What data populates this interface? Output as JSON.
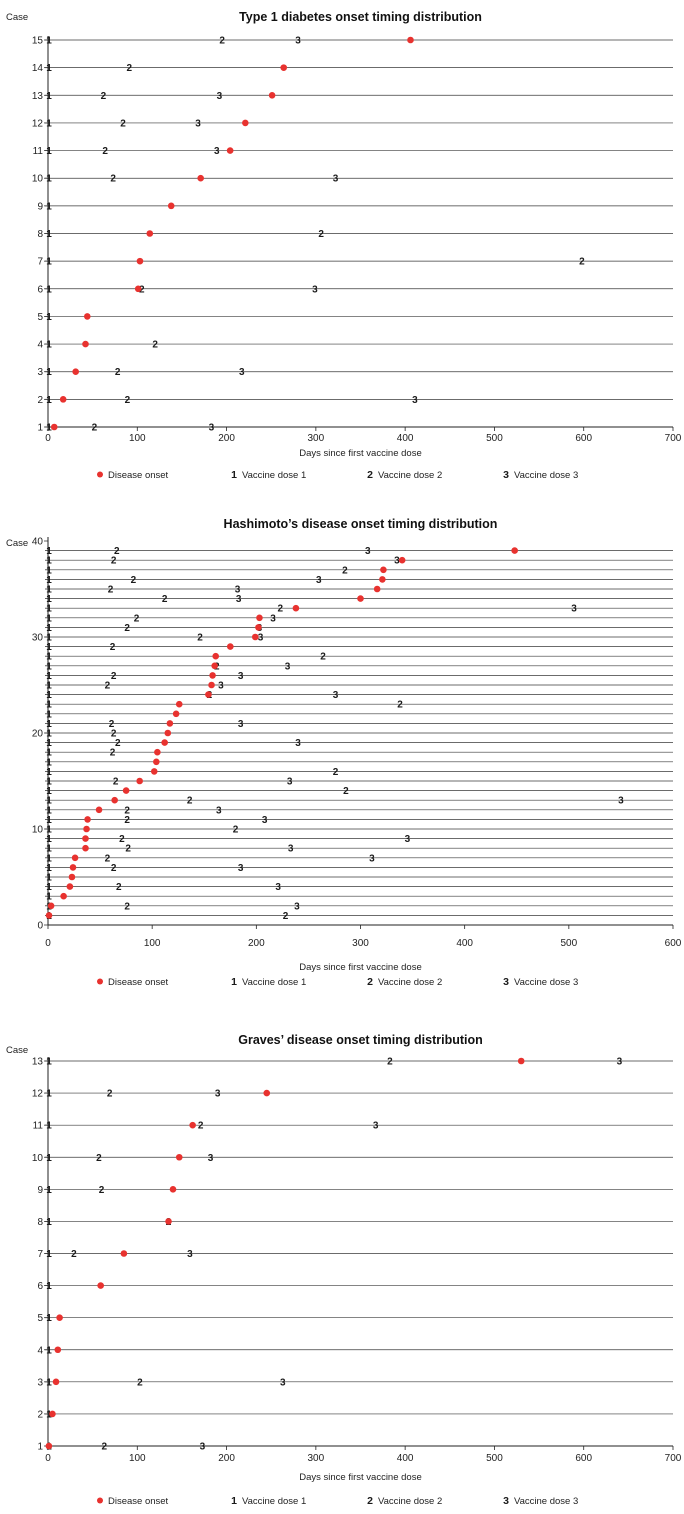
{
  "chart_data": [
    {
      "type": "scatter",
      "title": "Type 1 diabetes onset timing distribution",
      "ylabel": "Case",
      "xlabel": "Days since first vaccine dose",
      "xlim": [
        0,
        700
      ],
      "ylim": [
        1,
        15
      ],
      "xticks": [
        0,
        100,
        200,
        300,
        400,
        500,
        600,
        700
      ],
      "yticks": [
        1,
        2,
        3,
        4,
        5,
        6,
        7,
        8,
        9,
        10,
        11,
        12,
        13,
        14,
        15
      ],
      "grid": "horizontal lines at each case",
      "legend_position": "bottom",
      "legend": [
        {
          "key": "onset",
          "label": "Disease onset",
          "marker": "●"
        },
        {
          "key": "dose1",
          "label": "Vaccine dose 1",
          "marker": "1"
        },
        {
          "key": "dose2",
          "label": "Vaccine dose 2",
          "marker": "2"
        },
        {
          "key": "dose3",
          "label": "Vaccine dose 3",
          "marker": "3"
        }
      ],
      "cases": [
        {
          "case": 1,
          "onset": 7,
          "dose1": 0,
          "dose2": 52,
          "dose3": 183
        },
        {
          "case": 2,
          "onset": 17,
          "dose1": 0,
          "dose2": 89,
          "dose3": 411
        },
        {
          "case": 3,
          "onset": 31,
          "dose1": 0,
          "dose2": 78,
          "dose3": 217
        },
        {
          "case": 4,
          "onset": 42,
          "dose1": 0,
          "dose2": 120,
          "dose3": null
        },
        {
          "case": 5,
          "onset": 44,
          "dose1": 0,
          "dose2": null,
          "dose3": null
        },
        {
          "case": 6,
          "onset": 101,
          "dose1": 0,
          "dose2": 105,
          "dose3": 299
        },
        {
          "case": 7,
          "onset": 103,
          "dose1": 0,
          "dose2": 598,
          "dose3": null
        },
        {
          "case": 8,
          "onset": 114,
          "dose1": 0,
          "dose2": 306,
          "dose3": null
        },
        {
          "case": 9,
          "onset": 138,
          "dose1": 0,
          "dose2": null,
          "dose3": null
        },
        {
          "case": 10,
          "onset": 171,
          "dose1": 0,
          "dose2": 73,
          "dose3": 322
        },
        {
          "case": 11,
          "onset": 204,
          "dose1": 0,
          "dose2": 64,
          "dose3": 189
        },
        {
          "case": 12,
          "onset": 221,
          "dose1": 0,
          "dose2": 84,
          "dose3": 168
        },
        {
          "case": 13,
          "onset": 251,
          "dose1": 0,
          "dose2": 62,
          "dose3": 192
        },
        {
          "case": 14,
          "onset": 264,
          "dose1": 0,
          "dose2": 91,
          "dose3": null
        },
        {
          "case": 15,
          "onset": 406,
          "dose1": 0,
          "dose2": 195,
          "dose3": 280
        }
      ]
    },
    {
      "type": "scatter",
      "title": "Hashimoto’s disease onset timing distribution",
      "ylabel": "Case",
      "xlabel": "Days since first vaccine dose",
      "xlim": [
        0,
        600
      ],
      "ylim": [
        0,
        40
      ],
      "xticks": [
        0,
        100,
        200,
        300,
        400,
        500,
        600
      ],
      "yticks": [
        0,
        10,
        20,
        30,
        40
      ],
      "grid": "horizontal lines at each case",
      "legend_position": "bottom",
      "legend": [
        {
          "key": "onset",
          "label": "Disease onset",
          "marker": "●"
        },
        {
          "key": "dose1",
          "label": "Vaccine dose 1",
          "marker": "1"
        },
        {
          "key": "dose2",
          "label": "Vaccine dose 2",
          "marker": "2"
        },
        {
          "key": "dose3",
          "label": "Vaccine dose 3",
          "marker": "3"
        }
      ],
      "cases": [
        {
          "case": 1,
          "onset": 1,
          "dose1": 0,
          "dose2": 228,
          "dose3": null
        },
        {
          "case": 2,
          "onset": 3,
          "dose1": 0,
          "dose2": 76,
          "dose3": 239
        },
        {
          "case": 3,
          "onset": 15,
          "dose1": 0,
          "dose2": null,
          "dose3": null
        },
        {
          "case": 4,
          "onset": 21,
          "dose1": 0,
          "dose2": 68,
          "dose3": 221
        },
        {
          "case": 5,
          "onset": 23,
          "dose1": 0,
          "dose2": null,
          "dose3": null
        },
        {
          "case": 6,
          "onset": 24,
          "dose1": 0,
          "dose2": 63,
          "dose3": 185
        },
        {
          "case": 7,
          "onset": 26,
          "dose1": 0,
          "dose2": 57,
          "dose3": 311
        },
        {
          "case": 8,
          "onset": 36,
          "dose1": 0,
          "dose2": 77,
          "dose3": 233
        },
        {
          "case": 9,
          "onset": 36,
          "dose1": 0,
          "dose2": 71,
          "dose3": 345
        },
        {
          "case": 10,
          "onset": 37,
          "dose1": 0,
          "dose2": 180,
          "dose3": null
        },
        {
          "case": 11,
          "onset": 38,
          "dose1": 0,
          "dose2": 76,
          "dose3": 208
        },
        {
          "case": 12,
          "onset": 49,
          "dose1": 0,
          "dose2": 76,
          "dose3": 164
        },
        {
          "case": 13,
          "onset": 64,
          "dose1": 0,
          "dose2": 136,
          "dose3": 550
        },
        {
          "case": 14,
          "onset": 75,
          "dose1": 0,
          "dose2": 286,
          "dose3": null
        },
        {
          "case": 15,
          "onset": 88,
          "dose1": 0,
          "dose2": 65,
          "dose3": 232
        },
        {
          "case": 16,
          "onset": 102,
          "dose1": 0,
          "dose2": 276,
          "dose3": null
        },
        {
          "case": 17,
          "onset": 104,
          "dose1": 0,
          "dose2": null,
          "dose3": null
        },
        {
          "case": 18,
          "onset": 105,
          "dose1": 0,
          "dose2": 62,
          "dose3": null
        },
        {
          "case": 19,
          "onset": 112,
          "dose1": 0,
          "dose2": 67,
          "dose3": 240
        },
        {
          "case": 20,
          "onset": 115,
          "dose1": 0,
          "dose2": 63,
          "dose3": null
        },
        {
          "case": 21,
          "onset": 117,
          "dose1": 0,
          "dose2": 61,
          "dose3": 185
        },
        {
          "case": 22,
          "onset": 123,
          "dose1": 0,
          "dose2": null,
          "dose3": null
        },
        {
          "case": 23,
          "onset": 126,
          "dose1": 0,
          "dose2": 338,
          "dose3": null
        },
        {
          "case": 24,
          "onset": 154,
          "dose1": 0,
          "dose2": 155,
          "dose3": 276
        },
        {
          "case": 25,
          "onset": 157,
          "dose1": 0,
          "dose2": 57,
          "dose3": 166
        },
        {
          "case": 26,
          "onset": 158,
          "dose1": 0,
          "dose2": 63,
          "dose3": 185
        },
        {
          "case": 27,
          "onset": 160,
          "dose1": 0,
          "dose2": 162,
          "dose3": 230
        },
        {
          "case": 28,
          "onset": 161,
          "dose1": 0,
          "dose2": 264,
          "dose3": null
        },
        {
          "case": 29,
          "onset": 175,
          "dose1": 0,
          "dose2": 62,
          "dose3": null
        },
        {
          "case": 30,
          "onset": 199,
          "dose1": 0,
          "dose2": 146,
          "dose3": 204
        },
        {
          "case": 31,
          "onset": 202,
          "dose1": 0,
          "dose2": 76,
          "dose3": 203
        },
        {
          "case": 32,
          "onset": 203,
          "dose1": 0,
          "dose2": 85,
          "dose3": 216
        },
        {
          "case": 33,
          "onset": 238,
          "dose1": 0,
          "dose2": 223,
          "dose3": 505
        },
        {
          "case": 34,
          "onset": 300,
          "dose1": 0,
          "dose2": 112,
          "dose3": 183
        },
        {
          "case": 35,
          "onset": 316,
          "dose1": 0,
          "dose2": 60,
          "dose3": 182
        },
        {
          "case": 36,
          "onset": 321,
          "dose1": 0,
          "dose2": 82,
          "dose3": 260
        },
        {
          "case": 37,
          "onset": 322,
          "dose1": 0,
          "dose2": 285,
          "dose3": null
        },
        {
          "case": 38,
          "onset": 340,
          "dose1": 0,
          "dose2": 63,
          "dose3": 335
        },
        {
          "case": 39,
          "onset": 448,
          "dose1": 0,
          "dose2": 66,
          "dose3": 307
        }
      ]
    },
    {
      "type": "scatter",
      "title": "Graves’ disease onset timing distribution",
      "ylabel": "Case",
      "xlabel": "Days since first vaccine dose",
      "xlim": [
        0,
        700
      ],
      "ylim": [
        1,
        13
      ],
      "xticks": [
        0,
        100,
        200,
        300,
        400,
        500,
        600,
        700
      ],
      "yticks": [
        1,
        2,
        3,
        4,
        5,
        6,
        7,
        8,
        9,
        10,
        11,
        12,
        13
      ],
      "grid": "horizontal lines at each case",
      "legend_position": "bottom",
      "legend": [
        {
          "key": "onset",
          "label": "Disease onset",
          "marker": "●"
        },
        {
          "key": "dose1",
          "label": "Vaccine dose 1",
          "marker": "1"
        },
        {
          "key": "dose2",
          "label": "Vaccine dose 2",
          "marker": "2"
        },
        {
          "key": "dose3",
          "label": "Vaccine dose 3",
          "marker": "3"
        }
      ],
      "cases": [
        {
          "case": 1,
          "onset": 1,
          "dose1": 0,
          "dose2": 63,
          "dose3": 173
        },
        {
          "case": 2,
          "onset": 5,
          "dose1": 0,
          "dose2": null,
          "dose3": null
        },
        {
          "case": 3,
          "onset": 9,
          "dose1": 0,
          "dose2": 103,
          "dose3": 263
        },
        {
          "case": 4,
          "onset": 11,
          "dose1": 0,
          "dose2": null,
          "dose3": null
        },
        {
          "case": 5,
          "onset": 13,
          "dose1": 0,
          "dose2": null,
          "dose3": null
        },
        {
          "case": 6,
          "onset": 59,
          "dose1": 0,
          "dose2": null,
          "dose3": null
        },
        {
          "case": 7,
          "onset": 85,
          "dose1": 0,
          "dose2": 29,
          "dose3": 159
        },
        {
          "case": 8,
          "onset": 135,
          "dose1": 0,
          "dose2": 135,
          "dose3": null
        },
        {
          "case": 9,
          "onset": 140,
          "dose1": 0,
          "dose2": 60,
          "dose3": null
        },
        {
          "case": 10,
          "onset": 147,
          "dose1": 0,
          "dose2": 57,
          "dose3": 182
        },
        {
          "case": 11,
          "onset": 162,
          "dose1": 0,
          "dose2": 171,
          "dose3": 367
        },
        {
          "case": 12,
          "onset": 245,
          "dose1": 0,
          "dose2": 69,
          "dose3": 190
        },
        {
          "case": 13,
          "onset": 530,
          "dose1": 0,
          "dose2": 383,
          "dose3": 640
        }
      ]
    }
  ]
}
